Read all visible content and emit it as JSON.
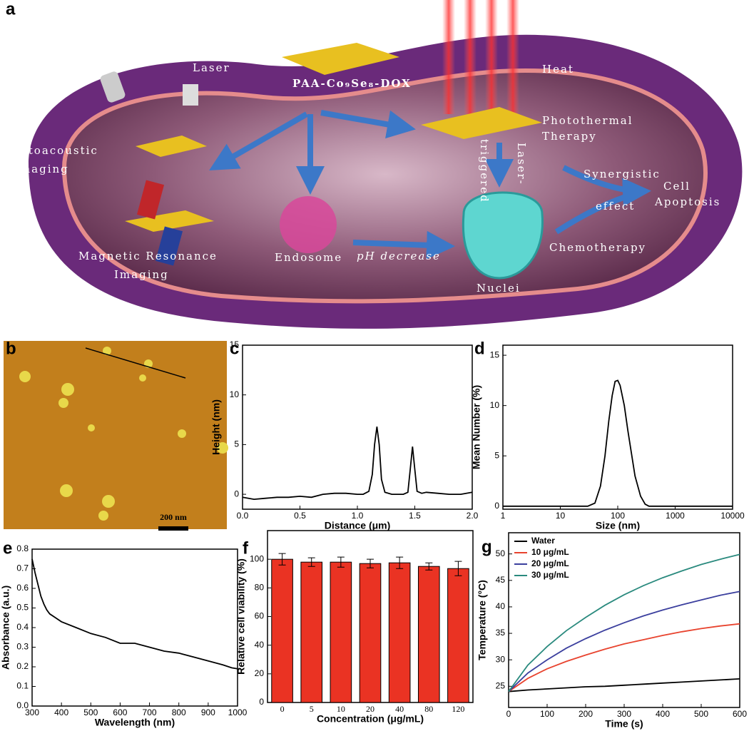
{
  "panel_labels": [
    "a",
    "b",
    "c",
    "d",
    "e",
    "f",
    "g"
  ],
  "schematic": {
    "agent": "PAA-Co₉Se₈-DOX",
    "laser": "Laser",
    "heat": "Heat",
    "photoacoustic": [
      "Photoacoustic",
      "Imaging"
    ],
    "photothermal": [
      "Photothermal",
      "Therapy"
    ],
    "laser_triggered": [
      "Laser-",
      "triggered"
    ],
    "synergistic": [
      "Synergistic",
      "effect"
    ],
    "apoptosis": [
      "Cell",
      "Apoptosis"
    ],
    "mri": [
      "Magnetic Resonance",
      "Imaging"
    ],
    "endosome": "Endosome",
    "ph": "pH decrease",
    "nuclei": "Nuclei",
    "chemotherapy": "Chemotherapy"
  },
  "afm_image": {
    "scale_bar": "200 nm"
  },
  "chart_data": [
    {
      "type": "line",
      "x_label": "Distance (μm)",
      "y_label": "Height (nm)",
      "color": "#000000",
      "x": [
        0,
        0.1,
        0.2,
        0.3,
        0.4,
        0.5,
        0.6,
        0.7,
        0.8,
        0.9,
        1.0,
        1.05,
        1.1,
        1.13,
        1.15,
        1.17,
        1.19,
        1.21,
        1.24,
        1.3,
        1.35,
        1.4,
        1.44,
        1.46,
        1.48,
        1.5,
        1.52,
        1.56,
        1.6,
        1.7,
        1.8,
        1.9,
        2.0
      ],
      "values": [
        -0.3,
        -0.5,
        -0.4,
        -0.3,
        -0.3,
        -0.2,
        -0.3,
        0,
        0.1,
        0.1,
        0,
        0,
        0.3,
        2,
        5,
        6.8,
        5,
        1.5,
        0.2,
        0,
        0,
        0,
        0.2,
        2.5,
        4.8,
        2.5,
        0.3,
        0.1,
        0.2,
        0.1,
        0,
        0,
        0.2
      ],
      "xlim": [
        0,
        2
      ],
      "ylim": [
        -1.5,
        15
      ],
      "xticks": [
        {
          "value": 0,
          "label": "0.0"
        },
        0.5,
        {
          "value": 1,
          "label": "1.0"
        },
        1.5,
        {
          "value": 2,
          "label": "2.0"
        }
      ],
      "yticks": [
        0,
        5,
        10,
        15
      ]
    },
    {
      "type": "line",
      "x_label": "Size (nm)",
      "y_label": "Mean Number (%)",
      "color": "#000000",
      "xscale": "log",
      "x": [
        1,
        10,
        30,
        40,
        50,
        60,
        70,
        80,
        90,
        100,
        110,
        130,
        150,
        200,
        250,
        300,
        350,
        1000,
        10000
      ],
      "values": [
        0,
        0,
        0,
        0.3,
        2,
        5,
        8.5,
        11,
        12.4,
        12.5,
        12,
        10,
        7.5,
        3,
        1,
        0.2,
        0,
        0,
        0
      ],
      "xlim": [
        1,
        10000
      ],
      "ylim": [
        -0.3,
        16
      ],
      "xticks": [
        1,
        10,
        100,
        1000,
        10000
      ],
      "yticks": [
        0,
        5,
        10,
        15
      ]
    },
    {
      "type": "line",
      "x_label": "Wavelength (nm)",
      "y_label": "Absorbance (a.u.)",
      "color": "#000000",
      "x": [
        300,
        310,
        320,
        330,
        340,
        350,
        360,
        380,
        400,
        450,
        500,
        550,
        600,
        650,
        700,
        750,
        800,
        850,
        900,
        950,
        980,
        1000
      ],
      "values": [
        0.75,
        0.68,
        0.62,
        0.56,
        0.52,
        0.49,
        0.47,
        0.45,
        0.43,
        0.4,
        0.37,
        0.35,
        0.32,
        0.32,
        0.3,
        0.28,
        0.27,
        0.25,
        0.23,
        0.21,
        0.195,
        0.19
      ],
      "xlim": [
        300,
        1000
      ],
      "ylim": [
        0,
        0.8
      ],
      "xticks": [
        300,
        400,
        500,
        600,
        700,
        800,
        900,
        1000
      ],
      "yticks": [
        {
          "value": 0,
          "label": "0.0"
        },
        0.1,
        0.2,
        0.3,
        0.4,
        0.5,
        0.6,
        0.7,
        0.8
      ]
    },
    {
      "type": "bar",
      "x_label": "Concentration (μg/mL)",
      "y_label": "Relative cell viability (%)",
      "color": "#ea3323",
      "categories": [
        "0",
        "5",
        "10",
        "20",
        "40",
        "80",
        "120"
      ],
      "values": [
        100,
        98,
        98,
        97,
        97.5,
        95,
        93.5
      ],
      "errors": [
        4,
        3,
        3.5,
        3,
        4,
        2.5,
        5
      ],
      "ylim": [
        0,
        120
      ],
      "yticks": [
        0,
        20,
        40,
        60,
        80,
        100
      ]
    },
    {
      "type": "line",
      "x_label": "Time (s)",
      "y_label": "Temperature (°C)",
      "legend": "upper left",
      "x": [
        0,
        50,
        100,
        150,
        200,
        250,
        300,
        350,
        400,
        450,
        500,
        550,
        600
      ],
      "series": [
        {
          "name": "Water",
          "color": "#000000",
          "values": [
            24,
            24.3,
            24.5,
            24.7,
            24.9,
            25,
            25.2,
            25.4,
            25.6,
            25.8,
            26,
            26.2,
            26.4
          ]
        },
        {
          "name": "10 μg/mL",
          "color": "#e8432e",
          "values": [
            24,
            26.5,
            28.3,
            29.7,
            30.9,
            32,
            33,
            33.8,
            34.6,
            35.3,
            35.9,
            36.4,
            36.8
          ]
        },
        {
          "name": "20 μg/mL",
          "color": "#3b3f9e",
          "values": [
            24,
            27.5,
            30,
            32.2,
            34,
            35.6,
            37,
            38.3,
            39.4,
            40.4,
            41.3,
            42.2,
            42.9
          ]
        },
        {
          "name": "30 μg/mL",
          "color": "#2a8a7e",
          "values": [
            24,
            29,
            32.5,
            35.5,
            38,
            40.3,
            42.3,
            44,
            45.5,
            46.8,
            48,
            49,
            49.9
          ]
        }
      ],
      "xlim": [
        0,
        600
      ],
      "ylim": [
        21,
        54
      ],
      "xticks": [
        0,
        100,
        200,
        300,
        400,
        500,
        600
      ],
      "yticks": [
        25,
        30,
        35,
        40,
        45,
        50
      ]
    }
  ]
}
